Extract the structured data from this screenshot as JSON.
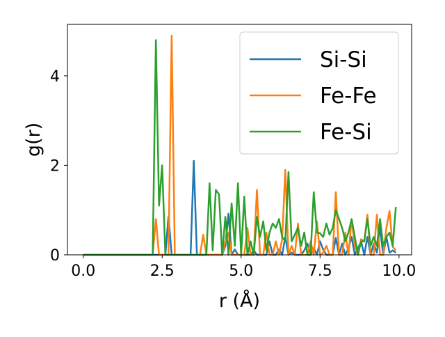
{
  "chart_data": {
    "type": "line",
    "title": "",
    "xlabel": "r (Å)",
    "ylabel": "g(r)",
    "xlim": [
      -0.5,
      10.4
    ],
    "ylim": [
      0,
      5.15
    ],
    "xticks": [
      {
        "value": 0.0,
        "label": "0.0"
      },
      {
        "value": 2.5,
        "label": "2.5"
      },
      {
        "value": 5.0,
        "label": "5.0"
      },
      {
        "value": 7.5,
        "label": "7.5"
      },
      {
        "value": 10.0,
        "label": "10.0"
      }
    ],
    "yticks": [
      {
        "value": 0,
        "label": "0"
      },
      {
        "value": 2,
        "label": "2"
      },
      {
        "value": 4,
        "label": "4"
      }
    ],
    "grid": false,
    "legend_position": "top-right",
    "series": [
      {
        "name": "Si-Si",
        "color": "#1f77b4",
        "x": [
          0.0,
          2.1,
          2.2,
          2.3,
          2.4,
          2.5,
          2.6,
          2.7,
          2.8,
          2.9,
          3.0,
          3.1,
          3.2,
          3.3,
          3.4,
          3.5,
          3.6,
          3.7,
          3.8,
          3.9,
          4.0,
          4.1,
          4.2,
          4.3,
          4.4,
          4.5,
          4.6,
          4.7,
          4.8,
          4.9,
          5.0,
          5.1,
          5.2,
          5.3,
          5.4,
          5.5,
          5.6,
          5.7,
          5.8,
          5.9,
          6.0,
          6.1,
          6.2,
          6.3,
          6.4,
          6.5,
          6.6,
          6.7,
          6.8,
          6.9,
          7.0,
          7.1,
          7.2,
          7.3,
          7.4,
          7.5,
          7.6,
          7.7,
          7.8,
          7.9,
          8.0,
          8.1,
          8.2,
          8.3,
          8.4,
          8.5,
          8.6,
          8.7,
          8.8,
          8.9,
          9.0,
          9.1,
          9.2,
          9.3,
          9.4,
          9.5,
          9.6,
          9.7,
          9.8,
          9.9
        ],
        "y": [
          0,
          0,
          0,
          0,
          0,
          0,
          0,
          0.85,
          0,
          0,
          0,
          0,
          0,
          0,
          0,
          2.1,
          0,
          0,
          0,
          0,
          0,
          0,
          0,
          0,
          0,
          0.2,
          0.92,
          0,
          0.12,
          0,
          0,
          0,
          0,
          0,
          0.1,
          0,
          0,
          0,
          0,
          0.3,
          0,
          0,
          0.12,
          0,
          0.4,
          0,
          0.05,
          0,
          0,
          0,
          0.1,
          0.25,
          0,
          0.15,
          0,
          0.3,
          0.12,
          0,
          0,
          0,
          0.38,
          0,
          0.25,
          0,
          0.15,
          0.4,
          0,
          0.15,
          0.3,
          0,
          0.4,
          0,
          0.25,
          0.05,
          0.6,
          0,
          0.4,
          0.05,
          0.1,
          0.05
        ]
      },
      {
        "name": "Fe-Fe",
        "color": "#ff7f0e",
        "x": [
          0.0,
          2.1,
          2.2,
          2.3,
          2.4,
          2.5,
          2.6,
          2.7,
          2.8,
          2.9,
          3.0,
          3.1,
          3.2,
          3.3,
          3.4,
          3.5,
          3.6,
          3.7,
          3.8,
          3.9,
          4.0,
          4.1,
          4.2,
          4.3,
          4.4,
          4.5,
          4.6,
          4.7,
          4.8,
          4.9,
          5.0,
          5.1,
          5.2,
          5.3,
          5.4,
          5.5,
          5.6,
          5.7,
          5.8,
          5.9,
          6.0,
          6.1,
          6.2,
          6.3,
          6.4,
          6.5,
          6.6,
          6.7,
          6.8,
          6.9,
          7.0,
          7.1,
          7.2,
          7.3,
          7.4,
          7.5,
          7.6,
          7.7,
          7.8,
          7.9,
          8.0,
          8.1,
          8.2,
          8.3,
          8.4,
          8.5,
          8.6,
          8.7,
          8.8,
          8.9,
          9.0,
          9.1,
          9.2,
          9.3,
          9.4,
          9.5,
          9.6,
          9.7,
          9.8,
          9.9
        ],
        "y": [
          0,
          0,
          0,
          0.8,
          0,
          0,
          0,
          0,
          4.9,
          0,
          0,
          0,
          0,
          0,
          0,
          0,
          0,
          0,
          0.45,
          0,
          0,
          0,
          0,
          0,
          0,
          0.3,
          0.5,
          0,
          0,
          0,
          0,
          0,
          0.6,
          0,
          0,
          1.45,
          0,
          0,
          0.5,
          0,
          0,
          0.3,
          0,
          0.35,
          1.9,
          0,
          0.2,
          0,
          0.7,
          0,
          0,
          0,
          0.3,
          0,
          0.75,
          0,
          0.05,
          0.2,
          0,
          0,
          1.4,
          0,
          0,
          0.5,
          0,
          0.8,
          0.2,
          0,
          0.35,
          0.3,
          0.9,
          0,
          0,
          0.9,
          0,
          0,
          0.6,
          0.98,
          0.18,
          0.1
        ]
      },
      {
        "name": "Fe-Si",
        "color": "#2ca02c",
        "x": [
          0.0,
          2.1,
          2.2,
          2.3,
          2.4,
          2.5,
          2.6,
          2.7,
          2.8,
          2.9,
          3.0,
          3.1,
          3.2,
          3.3,
          3.4,
          3.5,
          3.6,
          3.7,
          3.8,
          3.9,
          4.0,
          4.1,
          4.2,
          4.3,
          4.4,
          4.5,
          4.6,
          4.7,
          4.8,
          4.9,
          5.0,
          5.1,
          5.2,
          5.3,
          5.4,
          5.5,
          5.6,
          5.7,
          5.8,
          5.9,
          6.0,
          6.1,
          6.2,
          6.3,
          6.4,
          6.5,
          6.6,
          6.7,
          6.8,
          6.9,
          7.0,
          7.1,
          7.2,
          7.3,
          7.4,
          7.5,
          7.6,
          7.7,
          7.8,
          7.9,
          8.0,
          8.1,
          8.2,
          8.3,
          8.4,
          8.5,
          8.6,
          8.7,
          8.8,
          8.9,
          9.0,
          9.1,
          9.2,
          9.3,
          9.4,
          9.5,
          9.6,
          9.7,
          9.8,
          9.9
        ],
        "y": [
          0,
          0,
          0,
          4.8,
          1.1,
          2.0,
          0,
          0,
          0,
          0,
          0,
          0,
          0,
          0,
          0,
          0,
          0,
          0,
          0,
          0,
          1.6,
          0.1,
          1.45,
          1.35,
          0,
          0.85,
          0,
          1.15,
          0.2,
          1.6,
          0,
          1.3,
          0,
          0.3,
          0,
          0.85,
          0.4,
          0.75,
          0.1,
          0.5,
          0.7,
          0.6,
          0.8,
          0.4,
          0.3,
          1.85,
          0.3,
          0.45,
          0.6,
          0.2,
          0.5,
          0,
          0,
          1.4,
          0.5,
          0.48,
          0.4,
          0.7,
          0.45,
          0.6,
          1.0,
          0.8,
          0.6,
          0.3,
          0.5,
          0.8,
          0.4,
          0,
          0.3,
          0.3,
          0.8,
          0.2,
          0.4,
          0.2,
          0.8,
          0.2,
          0.4,
          0.5,
          0.2,
          1.07
        ]
      }
    ]
  }
}
